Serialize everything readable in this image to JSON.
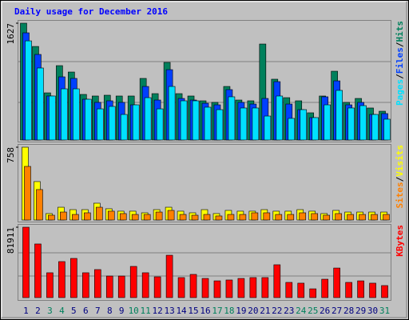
{
  "chart_data": [
    {
      "type": "bar",
      "title": "Daily usage for December 2016",
      "legend_separator": "/",
      "ylim": [
        0,
        1627
      ],
      "yticks": [
        1627
      ],
      "series": [
        {
          "name": "Pages",
          "color": "#00e0ff",
          "values": [
            1381,
            1003,
            613,
            713,
            713,
            568,
            434,
            468,
            356,
            490,
            590,
            434,
            746,
            546,
            546,
            457,
            423,
            602,
            446,
            446,
            334,
            613,
            301,
            423,
            312,
            490,
            691,
            446,
            479,
            356,
            290
          ]
        },
        {
          "name": "Files",
          "color": "#0040ff",
          "values": [
            1493,
            1192,
            613,
            880,
            858,
            568,
            524,
            546,
            524,
            490,
            746,
            557,
            980,
            579,
            557,
            512,
            490,
            702,
            524,
            501,
            579,
            813,
            501,
            423,
            312,
            602,
            824,
            490,
            524,
            356,
            368
          ]
        },
        {
          "name": "Hits",
          "color": "#00805c",
          "values": [
            1627,
            1303,
            657,
            1036,
            947,
            635,
            613,
            624,
            613,
            613,
            858,
            646,
            1081,
            646,
            613,
            546,
            524,
            746,
            557,
            546,
            1337,
            847,
            590,
            546,
            379,
            613,
            958,
            524,
            579,
            446,
            401
          ]
        }
      ]
    },
    {
      "type": "bar",
      "legend_separator": "/",
      "ylim": [
        0,
        758
      ],
      "yticks": [
        758
      ],
      "series": [
        {
          "name": "Sites",
          "color": "#ff8000",
          "values": [
            558,
            317,
            50,
            83,
            58,
            75,
            133,
            92,
            67,
            58,
            58,
            83,
            100,
            58,
            50,
            58,
            42,
            58,
            58,
            75,
            75,
            58,
            58,
            75,
            67,
            50,
            67,
            58,
            58,
            58,
            58
          ]
        },
        {
          "name": "Visits",
          "color": "#ffff00",
          "values": [
            758,
            400,
            67,
            133,
            108,
            108,
            175,
            117,
            92,
            92,
            75,
            108,
            133,
            92,
            75,
            108,
            67,
            100,
            92,
            92,
            108,
            92,
            92,
            108,
            92,
            67,
            100,
            83,
            83,
            83,
            83
          ]
        }
      ]
    },
    {
      "type": "bar",
      "ylim": [
        0,
        81911
      ],
      "yticks": [
        81911
      ],
      "categories": [
        "1",
        "2",
        "3",
        "4",
        "5",
        "6",
        "7",
        "8",
        "9",
        "10",
        "11",
        "12",
        "13",
        "14",
        "15",
        "16",
        "17",
        "18",
        "19",
        "20",
        "21",
        "22",
        "23",
        "24",
        "25",
        "26",
        "27",
        "28",
        "29",
        "30",
        "31"
      ],
      "category_colors": [
        "#000080",
        "#000080",
        "#00805c",
        "#00805c",
        "#000080",
        "#000080",
        "#000080",
        "#000080",
        "#000080",
        "#00805c",
        "#00805c",
        "#000080",
        "#000080",
        "#000080",
        "#000080",
        "#000080",
        "#00805c",
        "#00805c",
        "#000080",
        "#000080",
        "#000080",
        "#000080",
        "#000080",
        "#00805c",
        "#00805c",
        "#000080",
        "#000080",
        "#000080",
        "#000080",
        "#000080",
        "#00805c"
      ],
      "series": [
        {
          "name": "KBytes",
          "color": "#ff0000",
          "values": [
            81911,
            62400,
            28900,
            41900,
            45600,
            28900,
            32600,
            25100,
            25100,
            36300,
            28900,
            24200,
            49300,
            23300,
            27000,
            22300,
            19500,
            20500,
            22300,
            23300,
            23300,
            38200,
            17700,
            16800,
            10200,
            21400,
            34400,
            17700,
            19500,
            16800,
            14000
          ]
        }
      ]
    }
  ]
}
